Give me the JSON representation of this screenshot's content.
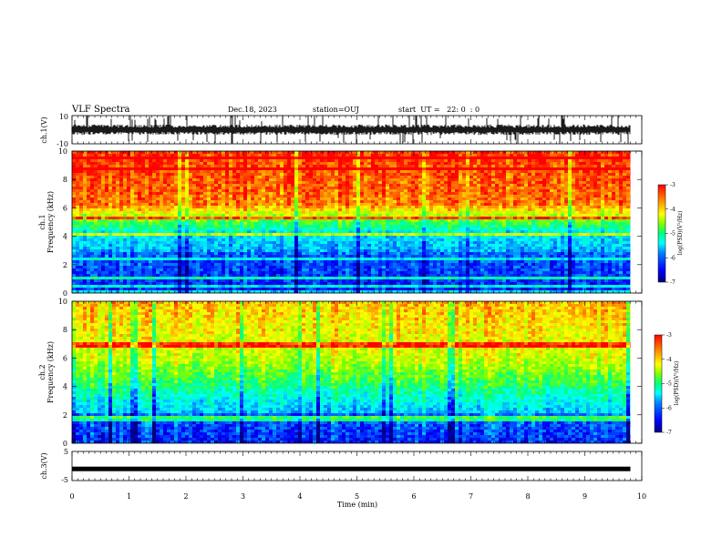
{
  "header": {
    "title": "VLF Spectra",
    "date": "Dec.18, 2023",
    "station": "station=OUJ",
    "start_ut": "start  UT =   22: 0  : 0"
  },
  "colors": {
    "colormap": [
      "#00007f",
      "#0000ff",
      "#0080ff",
      "#00ffff",
      "#00ff80",
      "#80ff00",
      "#ffff00",
      "#ff8000",
      "#ff0000"
    ],
    "trace": "#000000"
  },
  "chart_data": [
    {
      "id": "ch1-waveform",
      "type": "line",
      "ylabel": "ch.1(V)",
      "ylim": [
        -10,
        10
      ],
      "yticks": [
        "10",
        "-10"
      ],
      "description_series": "noisy waveform around ~0 V with spikes"
    },
    {
      "id": "ch1-spectrogram",
      "type": "heatmap",
      "ylabel": "ch.1\nFrequency (kHz)",
      "ylabel_lines": [
        "ch.1",
        "Frequency (kHz)"
      ],
      "ylim": [
        0,
        10
      ],
      "yticks": [
        "0",
        "2",
        "4",
        "6",
        "8",
        "10"
      ],
      "colorbar": {
        "label": "log(PSD)(V²/Hz)",
        "range": [
          -7,
          -3
        ],
        "ticks": [
          "-3",
          "-4",
          "-5",
          "-6",
          "-7"
        ]
      }
    },
    {
      "id": "ch2-spectrogram",
      "type": "heatmap",
      "ylabel_lines": [
        "ch.2",
        "Frequency (kHz)"
      ],
      "ylim": [
        0,
        10
      ],
      "yticks": [
        "0",
        "2",
        "4",
        "6",
        "8",
        "10"
      ],
      "colorbar": {
        "label": "log(PSD)(V²/Hz)",
        "range": [
          -7,
          -3
        ],
        "ticks": [
          "-3",
          "-4",
          "-5",
          "-6",
          "-7"
        ]
      }
    },
    {
      "id": "ch3-waveform",
      "type": "line",
      "ylabel": "ch.3(V)",
      "ylim": [
        -5,
        5
      ],
      "yticks": [
        "5",
        "-5"
      ],
      "level": -1
    }
  ],
  "xaxis": {
    "label": "Time (min)",
    "range": [
      0,
      10
    ],
    "ticks": [
      "0",
      "1",
      "2",
      "3",
      "4",
      "5",
      "6",
      "7",
      "8",
      "9",
      "10"
    ],
    "data_end": 9.8
  }
}
